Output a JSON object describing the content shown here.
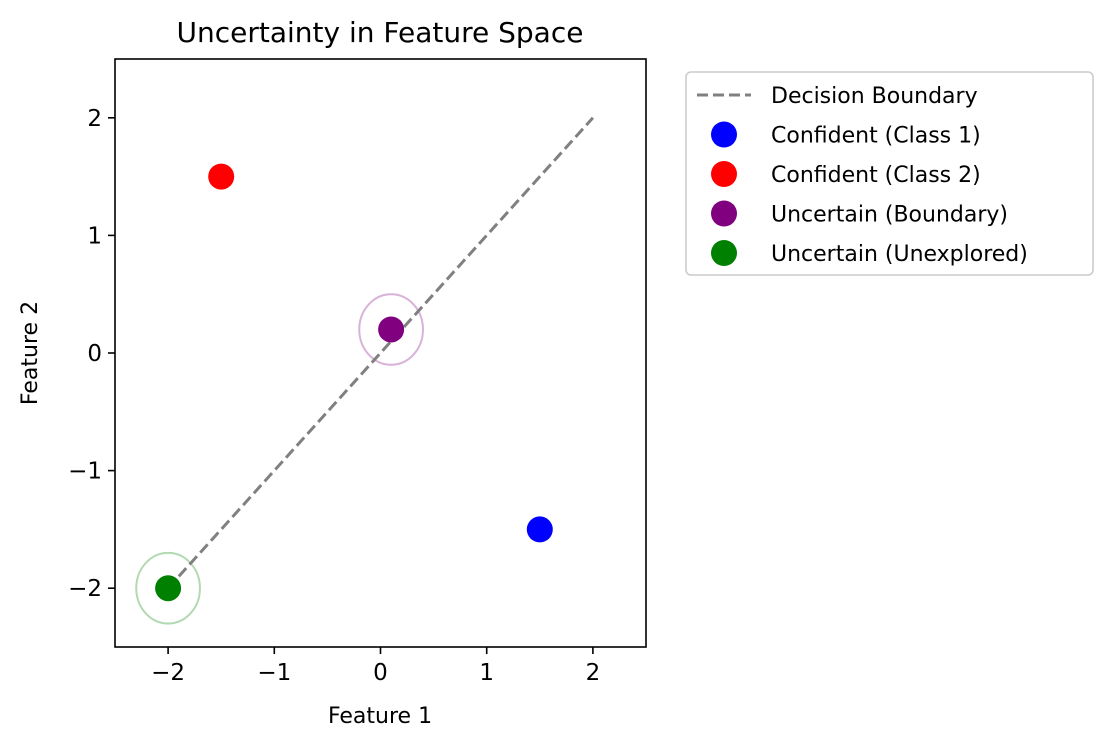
{
  "chart_data": {
    "type": "scatter",
    "title": "Uncertainty in Feature Space",
    "xlabel": "Feature 1",
    "ylabel": "Feature 2",
    "xlim": [
      -2.5,
      2.5
    ],
    "ylim": [
      -2.5,
      2.5
    ],
    "xticks": [
      -2,
      -1,
      0,
      1,
      2
    ],
    "yticks": [
      -2,
      -1,
      0,
      1,
      2
    ],
    "xtick_labels": [
      "−2",
      "−1",
      "0",
      "1",
      "2"
    ],
    "ytick_labels": [
      "−2",
      "−1",
      "0",
      "1",
      "2"
    ],
    "grid": false,
    "legend_position": "outside-upper-right",
    "boundary": {
      "name": "Decision Boundary",
      "x": [
        -2,
        2
      ],
      "y": [
        -2,
        2
      ],
      "color": "#808080",
      "style": "dashed"
    },
    "series": [
      {
        "name": "Confident (Class 1)",
        "x": 1.5,
        "y": -1.5,
        "color": "#0000ff"
      },
      {
        "name": "Confident (Class 2)",
        "x": -1.5,
        "y": 1.5,
        "color": "#ff0000"
      },
      {
        "name": "Uncertain (Boundary)",
        "x": 0.1,
        "y": 0.2,
        "color": "#800080",
        "uncertainty_radius": 0.3
      },
      {
        "name": "Uncertain (Unexplored)",
        "x": -2,
        "y": -2,
        "color": "#008000",
        "uncertainty_radius": 0.3
      }
    ]
  }
}
